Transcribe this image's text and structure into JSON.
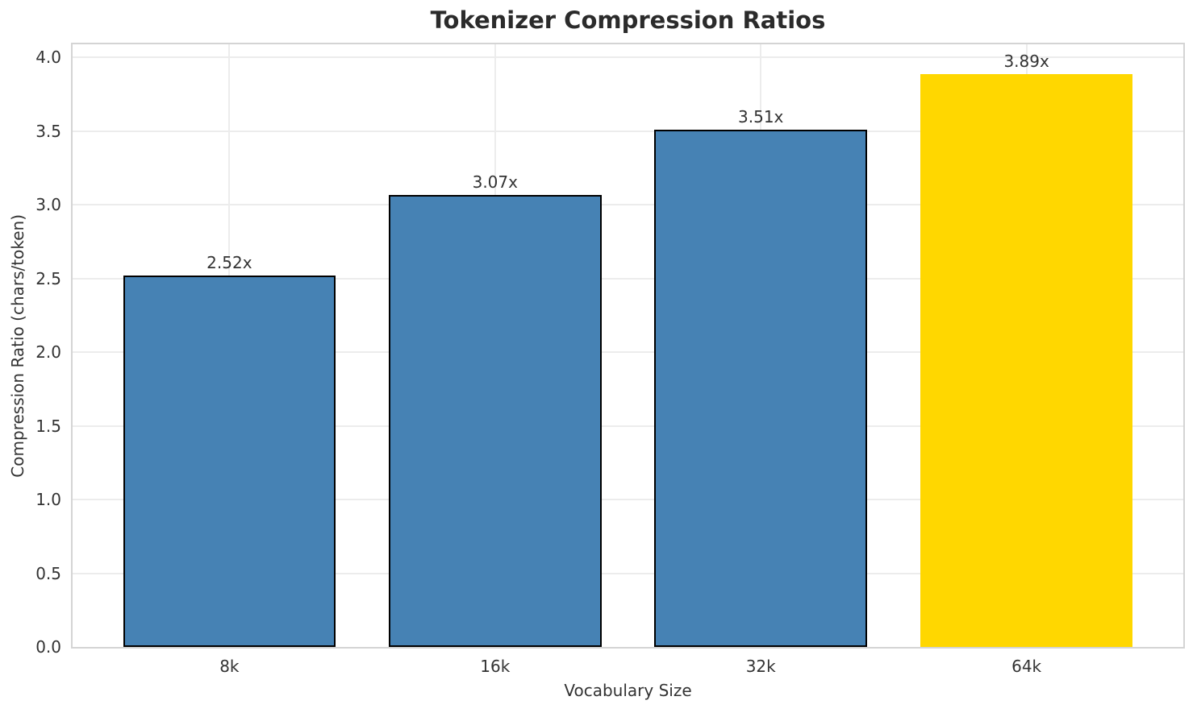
{
  "chart_data": {
    "type": "bar",
    "title": "Tokenizer Compression Ratios",
    "xlabel": "Vocabulary Size",
    "ylabel": "Compression Ratio (chars/token)",
    "categories": [
      "8k",
      "16k",
      "32k",
      "64k"
    ],
    "values": [
      2.52,
      3.07,
      3.51,
      3.89
    ],
    "value_labels": [
      "2.52x",
      "3.07x",
      "3.51x",
      "3.89x"
    ],
    "bar_colors": [
      "#4682B4",
      "#4682B4",
      "#4682B4",
      "#FFD700"
    ],
    "bar_edge_colors": [
      "#000000",
      "#000000",
      "#000000",
      "#FFD700"
    ],
    "highlight_index": 3,
    "ylim": [
      0,
      4.09
    ],
    "yticks": [
      0,
      0.5,
      1,
      1.5,
      2,
      2.5,
      3,
      3.5,
      4
    ],
    "ytick_labels": [
      "0.0",
      "0.5",
      "1.0",
      "1.5",
      "2.0",
      "2.5",
      "3.0",
      "3.5",
      "4.0"
    ],
    "grid": "both",
    "legend": "none",
    "colors": {
      "grid": "#ececec",
      "spine": "#d4d4d4",
      "text": "#333333",
      "title": "#2b2b2b",
      "background": "#ffffff"
    }
  }
}
